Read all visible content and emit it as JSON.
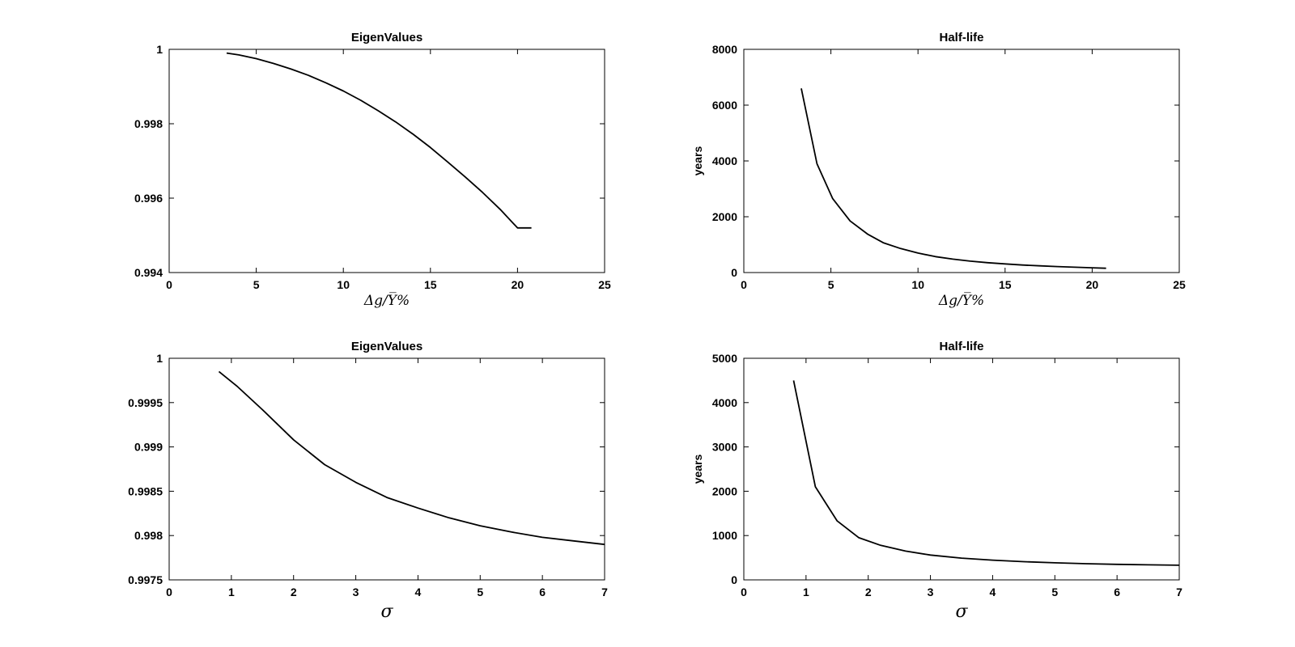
{
  "chart_data": [
    {
      "type": "line",
      "title": "EigenValues",
      "xlabel": "Δg/Y̅%",
      "ylabel": "",
      "xlim": [
        0,
        25
      ],
      "ylim": [
        0.994,
        1
      ],
      "xticks": [
        0,
        5,
        10,
        15,
        20,
        25
      ],
      "xtick_labels": [
        "0",
        "5",
        "10",
        "15",
        "20",
        "25"
      ],
      "yticks": [
        0.994,
        0.996,
        0.998,
        1
      ],
      "ytick_labels": [
        "0.994",
        "0.996",
        "0.998",
        "1"
      ],
      "grid": false,
      "series": [
        {
          "x": [
            3.3,
            4.0,
            5.0,
            6.0,
            7.0,
            8.0,
            9.0,
            10.0,
            11.0,
            12.0,
            13.0,
            14.0,
            15.0,
            16.0,
            17.0,
            18.0,
            19.0,
            20.0,
            20.8
          ],
          "y": [
            0.9999,
            0.99985,
            0.99975,
            0.99962,
            0.99947,
            0.9993,
            0.9991,
            0.99888,
            0.99863,
            0.99835,
            0.99805,
            0.99772,
            0.99736,
            0.99697,
            0.99657,
            0.99615,
            0.9957,
            0.9952,
            0.9952
          ]
        }
      ]
    },
    {
      "type": "line",
      "title": "Half-life",
      "xlabel": "Δg/Y̅%",
      "ylabel": "years",
      "xlim": [
        0,
        25
      ],
      "ylim": [
        0,
        8000
      ],
      "xticks": [
        0,
        5,
        10,
        15,
        20,
        25
      ],
      "xtick_labels": [
        "0",
        "5",
        "10",
        "15",
        "20",
        "25"
      ],
      "yticks": [
        0,
        2000,
        4000,
        6000,
        8000
      ],
      "ytick_labels": [
        "0",
        "2000",
        "4000",
        "6000",
        "8000"
      ],
      "grid": false,
      "series": [
        {
          "x": [
            3.3,
            4.2,
            5.1,
            6.1,
            7.1,
            8.0,
            9.0,
            10.0,
            11.0,
            12.0,
            13.0,
            14.0,
            15.0,
            16.0,
            17.0,
            18.0,
            19.0,
            20.0,
            20.8
          ],
          "y": [
            6600,
            3900,
            2650,
            1850,
            1380,
            1070,
            860,
            700,
            570,
            480,
            410,
            355,
            310,
            270,
            240,
            215,
            190,
            170,
            155
          ]
        }
      ]
    },
    {
      "type": "line",
      "title": "EigenValues",
      "xlabel": "σ",
      "ylabel": "",
      "xlim": [
        0,
        7
      ],
      "ylim": [
        0.9975,
        1
      ],
      "xticks": [
        0,
        1,
        2,
        3,
        4,
        5,
        6,
        7
      ],
      "xtick_labels": [
        "0",
        "1",
        "2",
        "3",
        "4",
        "5",
        "6",
        "7"
      ],
      "yticks": [
        0.9975,
        0.998,
        0.9985,
        0.999,
        0.9995,
        1
      ],
      "ytick_labels": [
        "0.9975",
        "0.998",
        "0.9985",
        "0.999",
        "0.9995",
        "1"
      ],
      "grid": false,
      "series": [
        {
          "x": [
            0.8,
            1.1,
            1.5,
            2.0,
            2.5,
            3.0,
            3.5,
            4.0,
            4.5,
            5.0,
            5.5,
            6.0,
            6.5,
            7.0
          ],
          "y": [
            0.99985,
            0.99968,
            0.99942,
            0.99908,
            0.9988,
            0.9986,
            0.99843,
            0.99831,
            0.9982,
            0.99811,
            0.99804,
            0.99798,
            0.99794,
            0.9979
          ]
        }
      ]
    },
    {
      "type": "line",
      "title": "Half-life",
      "xlabel": "σ",
      "ylabel": "years",
      "xlim": [
        0,
        7
      ],
      "ylim": [
        0,
        5000
      ],
      "xticks": [
        0,
        1,
        2,
        3,
        4,
        5,
        6,
        7
      ],
      "xtick_labels": [
        "0",
        "1",
        "2",
        "3",
        "4",
        "5",
        "6",
        "7"
      ],
      "yticks": [
        0,
        1000,
        2000,
        3000,
        4000,
        5000
      ],
      "ytick_labels": [
        "0",
        "1000",
        "2000",
        "3000",
        "4000",
        "5000"
      ],
      "grid": false,
      "series": [
        {
          "x": [
            0.8,
            1.15,
            1.5,
            1.85,
            2.2,
            2.6,
            3.0,
            3.5,
            4.0,
            4.5,
            5.0,
            5.5,
            6.0,
            6.5,
            7.0
          ],
          "y": [
            4500,
            2100,
            1330,
            950,
            780,
            650,
            560,
            490,
            445,
            410,
            385,
            365,
            350,
            340,
            330
          ]
        }
      ]
    }
  ]
}
